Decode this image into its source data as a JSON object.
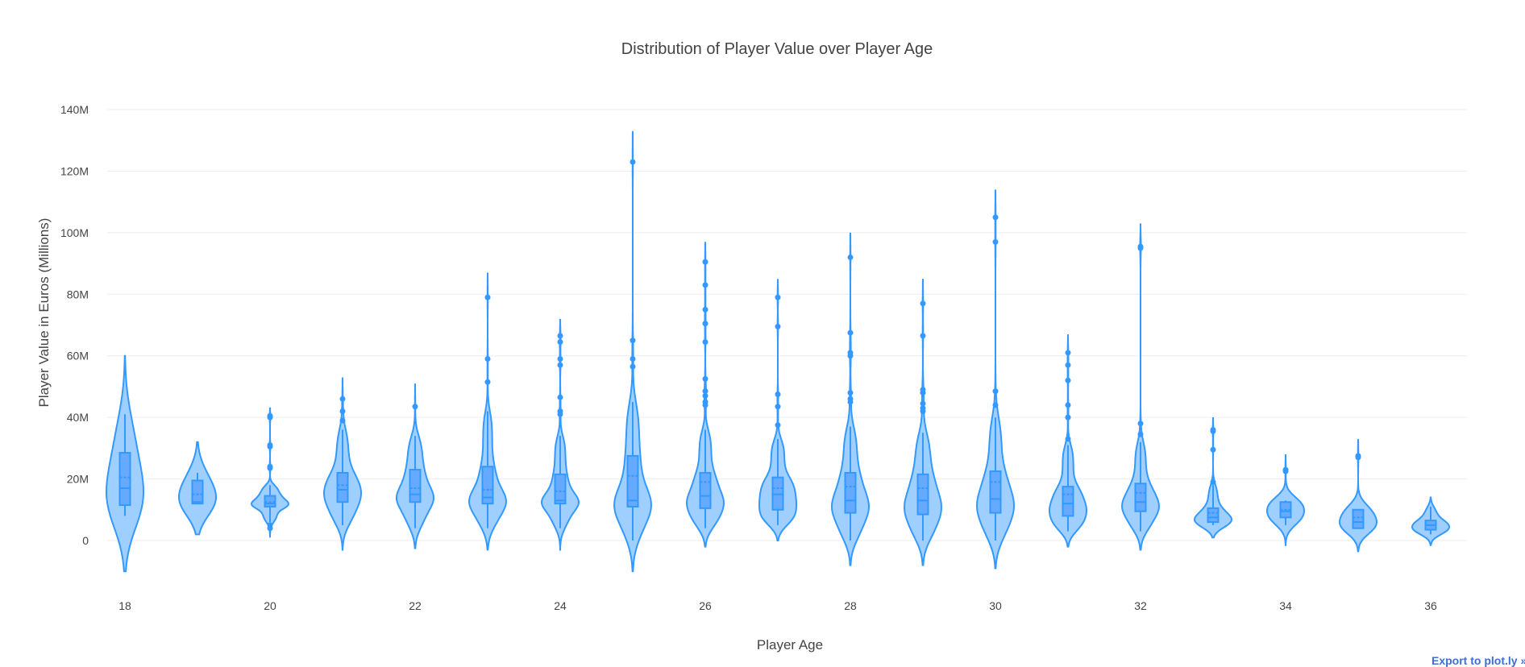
{
  "chart_data": {
    "type": "violin",
    "title": "Distribution of Player Value over Player Age",
    "xlabel": "Player Age",
    "ylabel": "Player Value in Euros (Millions)",
    "x_ticks": [
      "18",
      "20",
      "22",
      "24",
      "26",
      "28",
      "30",
      "32",
      "34",
      "36"
    ],
    "x_tick_values": [
      18,
      20,
      22,
      24,
      26,
      28,
      30,
      32,
      34,
      36
    ],
    "y_ticks": [
      "0",
      "20M",
      "40M",
      "60M",
      "80M",
      "100M",
      "120M",
      "140M"
    ],
    "y_tick_values": [
      0,
      20,
      40,
      60,
      80,
      100,
      120,
      140
    ],
    "ylim": [
      -15,
      150
    ],
    "xlim": [
      17.5,
      36.7
    ],
    "grid": true,
    "show_box": true,
    "show_mean_line": true,
    "show_outliers": true,
    "colors": {
      "line": "#3399ff",
      "fill": "#99ccff",
      "box_fill": "#66aaff",
      "grid": "#eeeeee",
      "text": "#444444"
    },
    "series": [
      {
        "age": 18,
        "kde_span": [
          -10,
          60
        ],
        "whisker": [
          8,
          41
        ],
        "q1": 11.5,
        "median": 17,
        "q3": 28.5,
        "mean": 20.5,
        "outliers": []
      },
      {
        "age": 19,
        "kde_span": [
          2,
          32
        ],
        "whisker": [
          12,
          22
        ],
        "q1": 12,
        "median": 12.5,
        "q3": 19.5,
        "mean": 15,
        "outliers": []
      },
      {
        "age": 20,
        "kde_span": [
          1,
          43
        ],
        "whisker": [
          6,
          18
        ],
        "q1": 11,
        "median": 12,
        "q3": 14.5,
        "mean": 12.5,
        "outliers": [
          40.5,
          40,
          31,
          30.5,
          24,
          23.5,
          5,
          4
        ]
      },
      {
        "age": 21,
        "kde_span": [
          -3,
          53
        ],
        "whisker": [
          5,
          36
        ],
        "q1": 12.5,
        "median": 16.5,
        "q3": 22,
        "mean": 18,
        "outliers": [
          46,
          42,
          39
        ]
      },
      {
        "age": 22,
        "kde_span": [
          -2.5,
          51
        ],
        "whisker": [
          4,
          34
        ],
        "q1": 12.5,
        "median": 15,
        "q3": 23,
        "mean": 17,
        "outliers": [
          43.5
        ]
      },
      {
        "age": 23,
        "kde_span": [
          -3,
          87
        ],
        "whisker": [
          4,
          42
        ],
        "q1": 12,
        "median": 14,
        "q3": 24,
        "mean": 16.5,
        "outliers": [
          79,
          59,
          51.5
        ]
      },
      {
        "age": 24,
        "kde_span": [
          -3,
          72
        ],
        "whisker": [
          4,
          34
        ],
        "q1": 12,
        "median": 13,
        "q3": 21.5,
        "mean": 16,
        "outliers": [
          66.5,
          64.5,
          59,
          57,
          46.5,
          42,
          41
        ]
      },
      {
        "age": 25,
        "kde_span": [
          -10,
          133
        ],
        "whisker": [
          0,
          45
        ],
        "q1": 11,
        "median": 13,
        "q3": 27.5,
        "mean": 21,
        "outliers": [
          123,
          65,
          59,
          56.5
        ]
      },
      {
        "age": 26,
        "kde_span": [
          -2,
          97
        ],
        "whisker": [
          4,
          36
        ],
        "q1": 10.5,
        "median": 14.5,
        "q3": 22,
        "mean": 19,
        "outliers": [
          90.5,
          83,
          75,
          70.5,
          64.5,
          52.5,
          48.5,
          47,
          45,
          44
        ]
      },
      {
        "age": 27,
        "kde_span": [
          0,
          85
        ],
        "whisker": [
          5,
          33
        ],
        "q1": 10,
        "median": 15,
        "q3": 20.5,
        "mean": 17,
        "outliers": [
          79,
          69.5,
          47.5,
          43.5,
          37.5
        ]
      },
      {
        "age": 28,
        "kde_span": [
          -8,
          100
        ],
        "whisker": [
          0,
          37
        ],
        "q1": 9,
        "median": 13,
        "q3": 22,
        "mean": 17.5,
        "outliers": [
          92,
          67.5,
          61,
          60,
          48,
          46,
          45
        ]
      },
      {
        "age": 29,
        "kde_span": [
          -8,
          85
        ],
        "whisker": [
          0,
          35
        ],
        "q1": 8.5,
        "median": 13,
        "q3": 21.5,
        "mean": 17,
        "outliers": [
          77,
          66.5,
          49,
          48,
          44.5,
          43,
          42
        ]
      },
      {
        "age": 30,
        "kde_span": [
          -9,
          114
        ],
        "whisker": [
          0,
          40
        ],
        "q1": 9,
        "median": 13.5,
        "q3": 22.5,
        "mean": 19,
        "outliers": [
          105,
          97,
          48.5,
          44
        ]
      },
      {
        "age": 31,
        "kde_span": [
          -2,
          67
        ],
        "whisker": [
          3,
          31
        ],
        "q1": 8,
        "median": 12,
        "q3": 17.5,
        "mean": 15,
        "outliers": [
          61,
          57,
          52,
          44,
          40,
          33
        ]
      },
      {
        "age": 32,
        "kde_span": [
          -3,
          103
        ],
        "whisker": [
          3,
          32
        ],
        "q1": 9.5,
        "median": 12.5,
        "q3": 18.5,
        "mean": 15.5,
        "outliers": [
          95.5,
          95,
          38,
          34.5
        ]
      },
      {
        "age": 33,
        "kde_span": [
          1,
          40
        ],
        "whisker": [
          5,
          18
        ],
        "q1": 6,
        "median": 7.5,
        "q3": 10.5,
        "mean": 9,
        "outliers": [
          36,
          35.5,
          29.5,
          19
        ]
      },
      {
        "age": 34,
        "kde_span": [
          -1.5,
          28
        ],
        "whisker": [
          5,
          13
        ],
        "q1": 7.5,
        "median": 9.5,
        "q3": 12.5,
        "mean": 10,
        "outliers": [
          23,
          22.5
        ]
      },
      {
        "age": 35,
        "kde_span": [
          -3.5,
          33
        ],
        "whisker": [
          4,
          10
        ],
        "q1": 4,
        "median": 6,
        "q3": 10,
        "mean": 7.5,
        "outliers": [
          27.5,
          27
        ]
      },
      {
        "age": 36,
        "kde_span": [
          -1.5,
          14
        ],
        "whisker": [
          2,
          11
        ],
        "q1": 3.5,
        "median": 5,
        "q3": 6.5,
        "mean": 5,
        "outliers": []
      }
    ]
  },
  "footer": {
    "export_link": "Export to plot.ly »"
  }
}
